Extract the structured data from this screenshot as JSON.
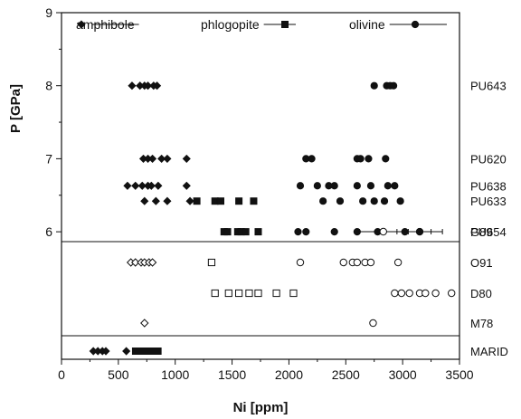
{
  "chart_data": {
    "type": "scatter",
    "xlabel": "Ni [ppm]",
    "ylabel": "P [GPa]",
    "xlim": [
      0,
      3500
    ],
    "ylim": [
      5.69,
      9
    ],
    "x_ticks": [
      "0",
      "500",
      "1000",
      "1500",
      "2000",
      "2500",
      "3000",
      "3500"
    ],
    "y_ticks": [
      {
        "value": 6,
        "label": "6"
      },
      {
        "value": 7,
        "label": "7"
      },
      {
        "value": 8,
        "label": "8"
      },
      {
        "value": 9,
        "label": "9"
      }
    ],
    "legend": {
      "placement": "top",
      "entries": [
        {
          "label": "amphibole",
          "marker": "diamond"
        },
        {
          "label": "phlogopite",
          "marker": "square"
        },
        {
          "label": "olivine",
          "marker": "circle"
        }
      ]
    },
    "grid": false,
    "experiment_panel": {
      "rows": [
        {
          "label": "PU643",
          "p": 8.0,
          "amphibole": [
            620,
            690,
            730,
            760,
            810,
            840
          ],
          "phlogopite": [],
          "olivine": [
            2750,
            2860,
            2890,
            2920
          ]
        },
        {
          "label": "PU620",
          "p": 7.0,
          "amphibole": [
            720,
            760,
            800,
            880,
            930,
            1100
          ],
          "phlogopite": [],
          "olivine": [
            2150,
            2200,
            2600,
            2630,
            2700,
            2850
          ]
        },
        {
          "label": "PU638",
          "p": 6.63,
          "amphibole": [
            580,
            650,
            710,
            760,
            790,
            850,
            1100
          ],
          "phlogopite": [],
          "olivine": [
            2100,
            2250,
            2350,
            2400,
            2600,
            2720,
            2870,
            2930
          ]
        },
        {
          "label": "PU633",
          "p": 6.42,
          "amphibole": [
            730,
            830,
            930,
            1130
          ],
          "phlogopite": [
            1190,
            1350,
            1400,
            1560,
            1690
          ],
          "olivine": [
            2300,
            2450,
            2650,
            2750,
            2840,
            2980
          ]
        },
        {
          "label": "PU654",
          "p": 6.0,
          "amphibole": [],
          "phlogopite": [
            1430,
            1460,
            1550,
            1580,
            1620,
            1730
          ],
          "olivine": [
            2080,
            2150,
            2400,
            2600,
            2780,
            3020,
            3150
          ]
        }
      ]
    },
    "literature_panel": {
      "rows": [
        {
          "label": "G89",
          "olivine_open": [
            2830
          ],
          "olivine_mean": {
            "value": 3150,
            "range": [
              2620,
              3350
            ],
            "ticks": [
              2950,
              3050,
              3250
            ]
          }
        },
        {
          "label": "O91",
          "amphibole_open": [
            610,
            650,
            700,
            730,
            770,
            800
          ],
          "phlogopite_open": [
            1320
          ],
          "olivine_open": [
            2100,
            2480,
            2560,
            2600,
            2670,
            2720,
            2960
          ]
        },
        {
          "label": "D80",
          "phlogopite_open": [
            1350,
            1470,
            1560,
            1650,
            1730,
            1890,
            2040
          ],
          "olivine_open": [
            2930,
            2990,
            3060,
            3150,
            3200,
            3290,
            3430
          ]
        },
        {
          "label": "M78",
          "amphibole_open": [
            730
          ],
          "olivine_open": [
            2740
          ]
        }
      ]
    },
    "marid_panel": {
      "rows": [
        {
          "label": "MARID",
          "amphibole": [
            280,
            320,
            360,
            390,
            570
          ],
          "phlogopite_range": [
            620,
            880
          ]
        }
      ]
    }
  }
}
